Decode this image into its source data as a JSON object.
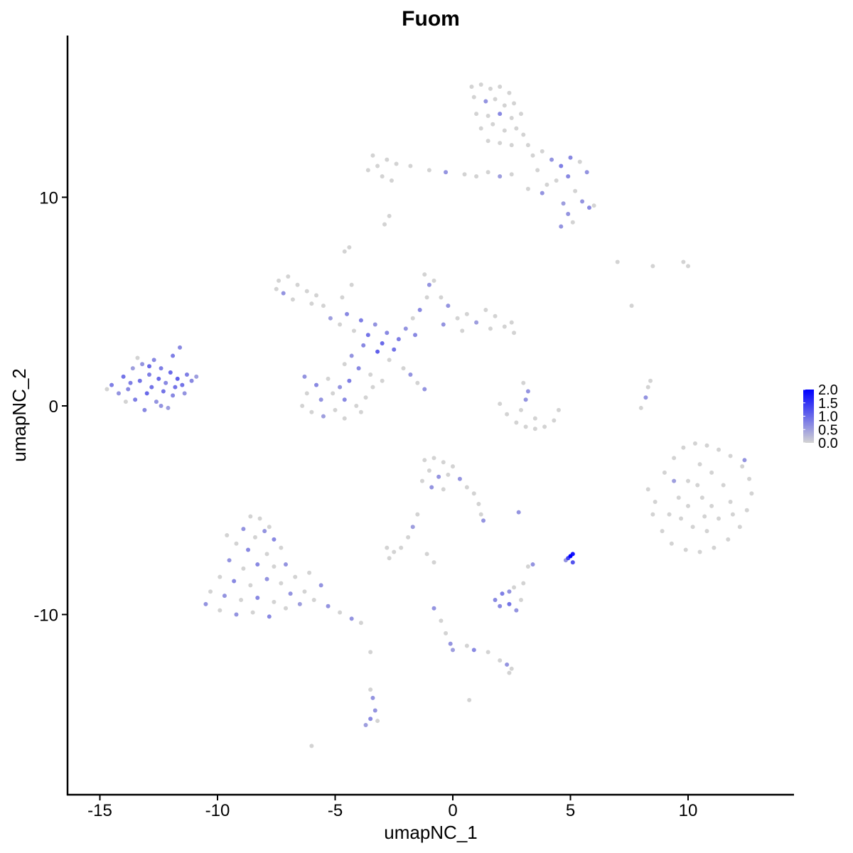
{
  "chart_data": {
    "type": "scatter",
    "title": "Fuom",
    "xlabel": "umapNC_1",
    "ylabel": "umapNC_2",
    "xlim": [
      -16.4,
      14.5
    ],
    "ylim": [
      -18.6,
      17.8
    ],
    "x_ticks": [
      "-15",
      "-10",
      "-5",
      "0",
      "5",
      "10"
    ],
    "y_ticks": [
      "-10",
      "0",
      "10"
    ],
    "x_tick_values": [
      -15,
      -10,
      -5,
      0,
      5,
      10
    ],
    "y_tick_values": [
      -10,
      0,
      10
    ],
    "grid": false,
    "legend": {
      "position": "right",
      "type": "colorbar",
      "labels": [
        "2.0",
        "1.5",
        "1.0",
        "0.5",
        "0.0"
      ],
      "range": [
        0,
        2.0
      ],
      "low_color": "#D3D3D3",
      "high_color": "#0000FF"
    },
    "points_format": [
      "x",
      "y",
      "expression"
    ],
    "points": [
      [
        -14.5,
        1.0,
        0.8
      ],
      [
        -14.2,
        0.6,
        0.6
      ],
      [
        -14.0,
        1.4,
        0.9
      ],
      [
        -13.8,
        0.8,
        0.7
      ],
      [
        -13.6,
        1.8,
        0.5
      ],
      [
        -13.5,
        0.3,
        0.8
      ],
      [
        -13.3,
        1.2,
        0.9
      ],
      [
        -13.2,
        2.0,
        0.6
      ],
      [
        -13.0,
        0.6,
        1.0
      ],
      [
        -12.9,
        1.5,
        0.8
      ],
      [
        -12.8,
        0.9,
        0.9
      ],
      [
        -12.7,
        2.2,
        0.7
      ],
      [
        -12.6,
        0.2,
        0.6
      ],
      [
        -12.5,
        1.3,
        1.0
      ],
      [
        -12.4,
        1.8,
        0.8
      ],
      [
        -12.3,
        0.7,
        0.9
      ],
      [
        -12.2,
        1.1,
        0.7
      ],
      [
        -12.1,
        -0.1,
        0.5
      ],
      [
        -12.0,
        1.6,
        1.0
      ],
      [
        -11.9,
        2.4,
        0.8
      ],
      [
        -11.8,
        0.9,
        0.9
      ],
      [
        -11.7,
        1.3,
        1.1
      ],
      [
        -11.6,
        2.8,
        0.7
      ],
      [
        -11.5,
        1.0,
        0.9
      ],
      [
        -11.3,
        1.5,
        0.8
      ],
      [
        -11.1,
        1.2,
        0.7
      ],
      [
        -10.9,
        1.4,
        0.5
      ],
      [
        -13.9,
        0.2,
        0
      ],
      [
        -13.1,
        -0.2,
        0.7
      ],
      [
        -12.4,
        0.0,
        0.6
      ],
      [
        -14.7,
        0.8,
        0
      ],
      [
        -13.4,
        2.3,
        0
      ],
      [
        -11.4,
        0.6,
        0.6
      ],
      [
        -12.9,
        1.9,
        1.0
      ],
      [
        -13.7,
        1.1,
        0.8
      ],
      [
        -11.9,
        0.5,
        0.7
      ],
      [
        0.8,
        15.3,
        0
      ],
      [
        1.2,
        15.4,
        0
      ],
      [
        1.6,
        15.2,
        0
      ],
      [
        2.0,
        15.3,
        0
      ],
      [
        2.4,
        15.0,
        0
      ],
      [
        0.9,
        14.8,
        0
      ],
      [
        1.4,
        14.6,
        0.6
      ],
      [
        1.8,
        14.7,
        0
      ],
      [
        2.2,
        14.4,
        0
      ],
      [
        2.6,
        14.5,
        0
      ],
      [
        1.0,
        14.0,
        0
      ],
      [
        1.5,
        13.9,
        0
      ],
      [
        2.0,
        14.0,
        0.7
      ],
      [
        2.5,
        13.8,
        0
      ],
      [
        2.9,
        14.0,
        0
      ],
      [
        1.2,
        13.3,
        0
      ],
      [
        1.7,
        13.5,
        0
      ],
      [
        2.2,
        13.2,
        0
      ],
      [
        2.7,
        13.3,
        0
      ],
      [
        3.0,
        13.0,
        0
      ],
      [
        1.5,
        12.7,
        0
      ],
      [
        2.0,
        12.6,
        0
      ],
      [
        2.5,
        12.5,
        0
      ],
      [
        3.2,
        12.5,
        0
      ],
      [
        3.4,
        12.0,
        0
      ],
      [
        3.8,
        12.2,
        0
      ],
      [
        4.2,
        11.8,
        0.6
      ],
      [
        4.6,
        11.5,
        0.8
      ],
      [
        5.0,
        11.9,
        0.7
      ],
      [
        5.4,
        11.7,
        0
      ],
      [
        5.7,
        11.2,
        0.6
      ],
      [
        4.9,
        11.0,
        0.7
      ],
      [
        4.4,
        10.8,
        0
      ],
      [
        4.0,
        10.6,
        0
      ],
      [
        3.6,
        11.3,
        0
      ],
      [
        5.2,
        10.3,
        0
      ],
      [
        5.5,
        9.8,
        0.6
      ],
      [
        5.8,
        9.5,
        0.7
      ],
      [
        6.0,
        9.6,
        0
      ],
      [
        4.7,
        9.7,
        0.5
      ],
      [
        4.9,
        9.2,
        0.6
      ],
      [
        5.1,
        8.8,
        0
      ],
      [
        4.6,
        8.6,
        0.6
      ],
      [
        3.8,
        10.2,
        0.6
      ],
      [
        3.2,
        10.4,
        0
      ],
      [
        2.5,
        11.1,
        0
      ],
      [
        2.0,
        11.0,
        0.5
      ],
      [
        1.5,
        11.2,
        0
      ],
      [
        1.0,
        11.0,
        0
      ],
      [
        0.5,
        11.1,
        0
      ],
      [
        -0.3,
        11.2,
        0.6
      ],
      [
        -1.0,
        11.3,
        0
      ],
      [
        -1.8,
        11.5,
        0
      ],
      [
        -2.4,
        11.6,
        0
      ],
      [
        -2.8,
        11.8,
        0
      ],
      [
        -3.2,
        11.5,
        0
      ],
      [
        -3.6,
        11.3,
        0
      ],
      [
        -3.0,
        11.0,
        0
      ],
      [
        -2.6,
        10.8,
        0
      ],
      [
        -3.4,
        12.0,
        0
      ],
      [
        -2.9,
        8.7,
        0
      ],
      [
        -2.7,
        9.1,
        0
      ],
      [
        -7.4,
        6.0,
        0
      ],
      [
        -7.0,
        6.2,
        0
      ],
      [
        -6.6,
        5.8,
        0
      ],
      [
        -6.2,
        5.5,
        0
      ],
      [
        -5.8,
        5.3,
        0
      ],
      [
        -7.2,
        5.4,
        0.6
      ],
      [
        -6.8,
        5.1,
        0
      ],
      [
        -7.5,
        5.6,
        0
      ],
      [
        -6.0,
        4.9,
        0
      ],
      [
        -5.5,
        4.8,
        0
      ],
      [
        -5.2,
        4.2,
        0.5
      ],
      [
        -4.8,
        3.9,
        0
      ],
      [
        -4.5,
        4.4,
        0.7
      ],
      [
        -4.2,
        3.6,
        0
      ],
      [
        -3.9,
        4.1,
        0.8
      ],
      [
        -3.6,
        3.4,
        0.9
      ],
      [
        -3.3,
        3.9,
        0.6
      ],
      [
        -3.0,
        3.0,
        1.0
      ],
      [
        -2.8,
        3.5,
        0.7
      ],
      [
        -2.5,
        2.7,
        0.9
      ],
      [
        -3.2,
        2.6,
        1.1
      ],
      [
        -3.8,
        2.9,
        0.7
      ],
      [
        -4.3,
        2.4,
        0.6
      ],
      [
        -4.6,
        2.0,
        0
      ],
      [
        -4.0,
        1.8,
        0.7
      ],
      [
        -3.5,
        1.5,
        0
      ],
      [
        -4.4,
        1.2,
        0.8
      ],
      [
        -4.8,
        0.9,
        0.6
      ],
      [
        -5.3,
        1.3,
        0
      ],
      [
        -5.8,
        1.0,
        0.7
      ],
      [
        -6.2,
        0.6,
        0
      ],
      [
        -6.4,
        0.0,
        0
      ],
      [
        -6.0,
        -0.3,
        0
      ],
      [
        -5.5,
        -0.5,
        0.5
      ],
      [
        -5.0,
        -0.2,
        0
      ],
      [
        -4.6,
        0.3,
        0.7
      ],
      [
        -4.1,
        0.0,
        0
      ],
      [
        -3.7,
        0.4,
        0
      ],
      [
        -3.4,
        0.9,
        0
      ],
      [
        -5.6,
        0.3,
        0.6
      ],
      [
        -6.3,
        1.4,
        0.6
      ],
      [
        -5.1,
        0.6,
        0
      ],
      [
        -4.6,
        -0.6,
        0
      ],
      [
        -3.9,
        -0.3,
        0
      ],
      [
        -4.7,
        5.2,
        0
      ],
      [
        -4.6,
        7.4,
        0
      ],
      [
        -4.4,
        7.6,
        0
      ],
      [
        -4.3,
        5.8,
        0
      ],
      [
        -2.3,
        3.2,
        0.8
      ],
      [
        -2.0,
        3.7,
        0.6
      ],
      [
        -1.7,
        4.2,
        0
      ],
      [
        -1.4,
        4.6,
        0.7
      ],
      [
        -1.1,
        5.2,
        0
      ],
      [
        -1.0,
        5.8,
        0.6
      ],
      [
        -1.2,
        6.3,
        0
      ],
      [
        -0.8,
        6.0,
        0
      ],
      [
        -0.5,
        5.2,
        0
      ],
      [
        -0.2,
        4.8,
        0.6
      ],
      [
        0.2,
        4.2,
        0
      ],
      [
        0.6,
        4.4,
        0
      ],
      [
        1.0,
        4.0,
        0.5
      ],
      [
        1.4,
        4.6,
        0
      ],
      [
        1.8,
        4.3,
        0
      ],
      [
        2.2,
        3.8,
        0
      ],
      [
        2.5,
        4.0,
        0
      ],
      [
        2.6,
        3.5,
        0
      ],
      [
        1.6,
        3.7,
        0
      ],
      [
        0.4,
        3.6,
        0
      ],
      [
        -0.4,
        3.9,
        0.6
      ],
      [
        -1.6,
        3.4,
        0.7
      ],
      [
        -2.1,
        1.8,
        0
      ],
      [
        -1.8,
        1.5,
        0.6
      ],
      [
        -1.5,
        1.1,
        0
      ],
      [
        -1.2,
        0.8,
        0.6
      ],
      [
        -2.7,
        2.2,
        0
      ],
      [
        -3.0,
        1.2,
        0
      ],
      [
        2.0,
        0.1,
        0
      ],
      [
        2.3,
        -0.4,
        0
      ],
      [
        2.7,
        -0.8,
        0
      ],
      [
        3.1,
        -1.0,
        0
      ],
      [
        3.5,
        -1.1,
        0
      ],
      [
        3.9,
        -1.0,
        0
      ],
      [
        4.3,
        -0.7,
        0
      ],
      [
        4.5,
        -0.2,
        0
      ],
      [
        3.0,
        1.1,
        0
      ],
      [
        3.2,
        0.7,
        0.6
      ],
      [
        3.1,
        0.3,
        0.6
      ],
      [
        2.9,
        -0.2,
        0
      ],
      [
        3.5,
        -0.6,
        0
      ],
      [
        7.0,
        6.9,
        0
      ],
      [
        8.5,
        6.7,
        0
      ],
      [
        9.8,
        6.9,
        0
      ],
      [
        10.0,
        6.7,
        0
      ],
      [
        7.6,
        4.8,
        0
      ],
      [
        8.3,
        0.9,
        0
      ],
      [
        8.2,
        0.4,
        0.6
      ],
      [
        8.0,
        -0.1,
        0
      ],
      [
        8.4,
        1.2,
        0
      ],
      [
        8.3,
        -4.0,
        0
      ],
      [
        8.6,
        -4.6,
        0
      ],
      [
        8.5,
        -5.2,
        0
      ],
      [
        9.0,
        -3.2,
        0
      ],
      [
        9.4,
        -2.5,
        0
      ],
      [
        9.8,
        -2.0,
        0
      ],
      [
        10.3,
        -1.8,
        0
      ],
      [
        10.8,
        -1.9,
        0
      ],
      [
        11.3,
        -2.1,
        0
      ],
      [
        11.8,
        -2.4,
        0
      ],
      [
        12.3,
        -2.9,
        0
      ],
      [
        12.6,
        -3.5,
        0
      ],
      [
        12.7,
        -4.2,
        0
      ],
      [
        12.5,
        -5.0,
        0
      ],
      [
        12.2,
        -5.8,
        0
      ],
      [
        11.7,
        -6.4,
        0
      ],
      [
        11.1,
        -6.8,
        0
      ],
      [
        10.5,
        -7.0,
        0
      ],
      [
        9.9,
        -6.9,
        0
      ],
      [
        9.3,
        -6.6,
        0
      ],
      [
        8.9,
        -6.0,
        0
      ],
      [
        9.2,
        -5.2,
        0
      ],
      [
        9.6,
        -4.4,
        0
      ],
      [
        10.0,
        -3.6,
        0
      ],
      [
        10.5,
        -2.8,
        0
      ],
      [
        11.0,
        -3.2,
        0
      ],
      [
        11.5,
        -3.8,
        0
      ],
      [
        11.8,
        -4.6,
        0
      ],
      [
        11.3,
        -5.4,
        0
      ],
      [
        10.8,
        -6.0,
        0
      ],
      [
        10.2,
        -5.8,
        0
      ],
      [
        9.7,
        -5.4,
        0
      ],
      [
        10.0,
        -4.8,
        0
      ],
      [
        10.6,
        -4.4,
        0
      ],
      [
        11.0,
        -4.8,
        0
      ],
      [
        10.4,
        -3.8,
        0
      ],
      [
        9.4,
        -3.6,
        0.5
      ],
      [
        12.4,
        -2.6,
        0.6
      ],
      [
        11.9,
        -5.2,
        0
      ],
      [
        10.7,
        -5.3,
        0
      ],
      [
        -8.6,
        -5.3,
        0
      ],
      [
        -8.2,
        -5.4,
        0
      ],
      [
        -7.8,
        -5.8,
        0
      ],
      [
        -8.9,
        -5.9,
        0.6
      ],
      [
        -8.4,
        -6.3,
        0
      ],
      [
        -7.6,
        -6.4,
        0.7
      ],
      [
        -9.2,
        -6.6,
        0
      ],
      [
        -8.7,
        -6.9,
        0.7
      ],
      [
        -7.9,
        -7.1,
        0
      ],
      [
        -7.3,
        -6.8,
        0
      ],
      [
        -9.5,
        -7.4,
        0.6
      ],
      [
        -8.9,
        -7.8,
        0
      ],
      [
        -8.3,
        -7.6,
        0.7
      ],
      [
        -7.6,
        -7.7,
        0
      ],
      [
        -7.1,
        -7.6,
        0.6
      ],
      [
        -9.9,
        -8.2,
        0
      ],
      [
        -9.3,
        -8.4,
        0.7
      ],
      [
        -8.6,
        -8.6,
        0
      ],
      [
        -7.9,
        -8.3,
        0.6
      ],
      [
        -7.3,
        -8.5,
        0
      ],
      [
        -6.7,
        -8.2,
        0
      ],
      [
        -10.3,
        -8.9,
        0
      ],
      [
        -9.7,
        -9.1,
        0.6
      ],
      [
        -9.0,
        -9.3,
        0
      ],
      [
        -8.3,
        -9.2,
        0.7
      ],
      [
        -7.6,
        -9.4,
        0
      ],
      [
        -6.9,
        -9.0,
        0.6
      ],
      [
        -6.3,
        -8.9,
        0
      ],
      [
        -10.5,
        -9.5,
        0.6
      ],
      [
        -9.9,
        -9.8,
        0
      ],
      [
        -9.2,
        -10.0,
        0.6
      ],
      [
        -8.5,
        -9.9,
        0
      ],
      [
        -7.8,
        -10.1,
        0.7
      ],
      [
        -7.1,
        -9.7,
        0
      ],
      [
        -6.5,
        -9.5,
        0.5
      ],
      [
        -5.9,
        -9.3,
        0
      ],
      [
        -5.3,
        -9.6,
        0.6
      ],
      [
        -4.8,
        -9.9,
        0
      ],
      [
        -4.3,
        -10.2,
        0.6
      ],
      [
        -3.9,
        -10.4,
        0
      ],
      [
        -5.6,
        -8.6,
        0.6
      ],
      [
        -6.1,
        -8.0,
        0
      ],
      [
        -9.6,
        -6.2,
        0
      ],
      [
        -8.0,
        -6.0,
        0.6
      ],
      [
        -1.2,
        -2.6,
        0
      ],
      [
        -0.8,
        -2.5,
        0
      ],
      [
        -0.4,
        -2.7,
        0
      ],
      [
        0.0,
        -2.9,
        0
      ],
      [
        -1.0,
        -3.1,
        0
      ],
      [
        -0.6,
        -3.4,
        0.6
      ],
      [
        -0.2,
        -3.3,
        0
      ],
      [
        0.3,
        -3.5,
        0.6
      ],
      [
        0.6,
        -3.9,
        0
      ],
      [
        0.9,
        -4.2,
        0
      ],
      [
        -1.3,
        -3.6,
        0
      ],
      [
        -0.9,
        -3.9,
        0.6
      ],
      [
        -0.4,
        -4.0,
        0
      ],
      [
        1.1,
        -4.7,
        0
      ],
      [
        1.2,
        -5.2,
        0
      ],
      [
        1.3,
        -5.5,
        0.6
      ],
      [
        -1.5,
        -5.2,
        0
      ],
      [
        -1.7,
        -5.8,
        0.5
      ],
      [
        -1.9,
        -6.3,
        0
      ],
      [
        -2.8,
        -6.8,
        0
      ],
      [
        -2.5,
        -7.0,
        0
      ],
      [
        -2.2,
        -6.8,
        0
      ],
      [
        -2.7,
        -7.3,
        0
      ],
      [
        -1.1,
        -7.1,
        0
      ],
      [
        -0.8,
        -7.5,
        0
      ],
      [
        1.8,
        -9.3,
        0.7
      ],
      [
        2.1,
        -9.0,
        0.8
      ],
      [
        2.4,
        -8.9,
        0.6
      ],
      [
        2.0,
        -9.6,
        0.7
      ],
      [
        2.4,
        -9.5,
        0.9
      ],
      [
        2.7,
        -9.8,
        0.6
      ],
      [
        2.9,
        -9.3,
        0
      ],
      [
        2.6,
        -8.7,
        0
      ],
      [
        3.0,
        -8.5,
        0
      ],
      [
        5.0,
        -7.2,
        2.0
      ],
      [
        5.1,
        -7.1,
        1.8
      ],
      [
        4.9,
        -7.3,
        1.4
      ],
      [
        4.8,
        -7.4,
        0.6
      ],
      [
        5.1,
        -7.5,
        1.2
      ],
      [
        3.4,
        -7.6,
        0.6
      ],
      [
        3.2,
        -7.7,
        0
      ],
      [
        2.8,
        -5.1,
        0.6
      ],
      [
        -0.8,
        -9.7,
        0.6
      ],
      [
        -0.5,
        -10.3,
        0
      ],
      [
        -0.3,
        -10.9,
        0
      ],
      [
        -0.1,
        -11.4,
        0.6
      ],
      [
        0.0,
        -11.7,
        0.5
      ],
      [
        0.6,
        -11.5,
        0
      ],
      [
        0.9,
        -11.7,
        0.7
      ],
      [
        1.5,
        -11.8,
        0
      ],
      [
        2.0,
        -12.2,
        0
      ],
      [
        2.3,
        -12.4,
        0.6
      ],
      [
        2.5,
        -12.6,
        0
      ],
      [
        2.4,
        -12.8,
        0
      ],
      [
        -3.5,
        -11.8,
        0
      ],
      [
        -3.5,
        -13.6,
        0
      ],
      [
        -3.4,
        -14.0,
        0.6
      ],
      [
        -3.3,
        -14.6,
        0.6
      ],
      [
        -3.5,
        -15.0,
        0.7
      ],
      [
        -3.7,
        -15.3,
        0.5
      ],
      [
        -3.2,
        -15.1,
        0
      ],
      [
        0.7,
        -14.1,
        0
      ],
      [
        -6.0,
        -16.3,
        0
      ]
    ]
  }
}
